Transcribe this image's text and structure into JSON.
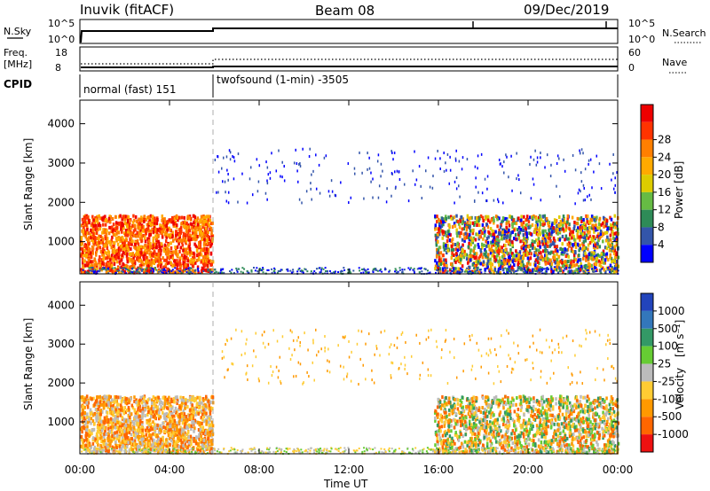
{
  "header": {
    "station": "Inuvik (fitACF)",
    "beam": "Beam 08",
    "date": "09/Dec/2019"
  },
  "strips": {
    "nsky_label": "N.Sky",
    "nsky_ticks": [
      "10^5",
      "10^0"
    ],
    "nsearch_label": "N.Search",
    "nsearch_ticks": [
      "10^5",
      "10^0"
    ],
    "freq_label": "Freq.",
    "freq_unit": "[MHz]",
    "freq_ticks": [
      "18",
      "8"
    ],
    "nave_label": "Nave",
    "nave_ticks": [
      "60",
      "0"
    ],
    "cpid_label": "CPID",
    "cpid_segments": [
      {
        "label": "normal (fast) 151",
        "start_hour": 0,
        "end_hour": 6.0
      },
      {
        "label": "twofsound (1-min) -3505",
        "start_hour": 6.0,
        "end_hour": 24
      }
    ]
  },
  "chart_data": [
    {
      "type": "heatmap",
      "quantity": "Power",
      "ylabel": "Slant Range [km]",
      "xlabel": "",
      "ylim": [
        180,
        4600
      ],
      "yticks": [
        "1000",
        "2000",
        "3000",
        "4000"
      ],
      "colorbar": {
        "label": "Power [dB]",
        "ticks": [
          "4",
          "8",
          "12",
          "16",
          "20",
          "24",
          "28"
        ],
        "colors": [
          "#0000ff",
          "#3355aa",
          "#2e8b57",
          "#66bb44",
          "#ddcc00",
          "#ffaa00",
          "#ff7f00",
          "#ff3300",
          "#ee0000"
        ]
      },
      "regions": [
        {
          "t0": 0.0,
          "t1": 5.9,
          "r0": 250,
          "r1": 1700,
          "level": "high"
        },
        {
          "t0": 15.8,
          "t1": 24.0,
          "r0": 250,
          "r1": 1700,
          "level": "mixed"
        },
        {
          "t0": 6.0,
          "t1": 24.0,
          "r0": 2000,
          "r1": 3400,
          "level": "sparse-low"
        }
      ]
    },
    {
      "type": "heatmap",
      "quantity": "Velocity",
      "ylabel": "Slant Range [km]",
      "xlabel": "Time UT",
      "ylim": [
        180,
        4600
      ],
      "yticks": [
        "1000",
        "2000",
        "3000",
        "4000"
      ],
      "xticks": [
        "00:00",
        "04:00",
        "08:00",
        "12:00",
        "16:00",
        "20:00",
        "00:00"
      ],
      "xrange_hours": [
        0,
        24
      ],
      "colorbar": {
        "label": "Velocity",
        "unit": "[m s⁻¹]",
        "ticks": [
          "1000",
          "500",
          "100",
          "25",
          "-25",
          "-100",
          "-500",
          "-1000"
        ],
        "colors": [
          "#2244bb",
          "#3377bb",
          "#339966",
          "#66cc33",
          "#bbbbbb",
          "#ffcc33",
          "#ff9900",
          "#ff6600",
          "#ee1111"
        ]
      },
      "regions": [
        {
          "t0": 0.0,
          "t1": 5.9,
          "r0": 250,
          "r1": 1700,
          "level": "negative"
        },
        {
          "t0": 15.8,
          "t1": 24.0,
          "r0": 250,
          "r1": 1700,
          "level": "mixed-negative"
        },
        {
          "t0": 6.0,
          "t1": 24.0,
          "r0": 2000,
          "r1": 3400,
          "level": "sparse-negative"
        }
      ]
    }
  ]
}
